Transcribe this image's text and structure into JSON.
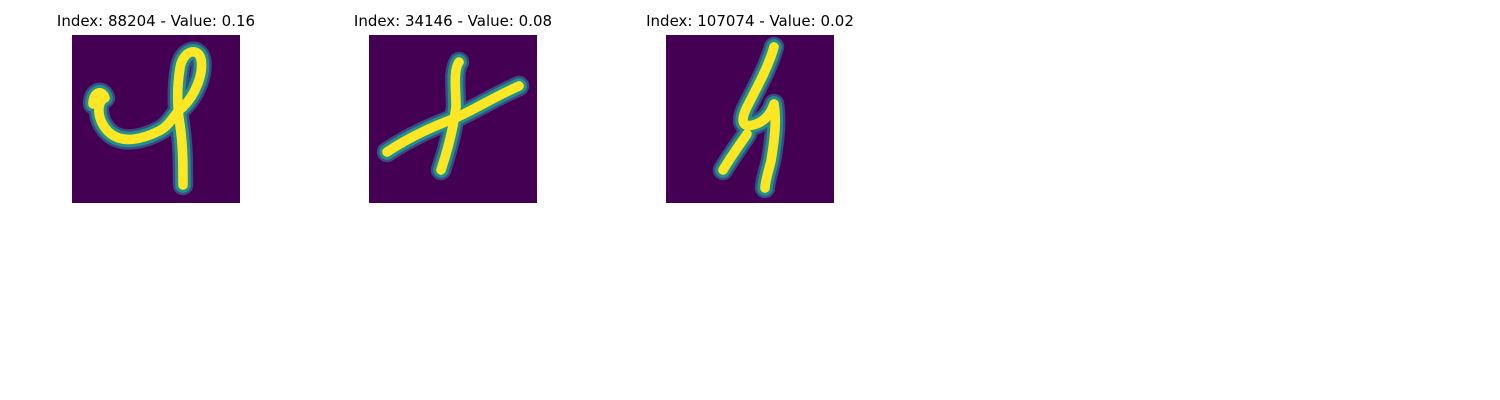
{
  "colors": {
    "background": "#440154",
    "stroke_core": "#fde725",
    "stroke_mid": "#21918c",
    "stroke_edge": "#3b528b"
  },
  "panels": [
    {
      "title": "Index: 88204 - Value: 0.16",
      "glyph": "cursive-l"
    },
    {
      "title": "Index: 34146 - Value: 0.08",
      "glyph": "cursive-x"
    },
    {
      "title": "Index: 107074 - Value: 0.02",
      "glyph": "cursive-4"
    }
  ]
}
